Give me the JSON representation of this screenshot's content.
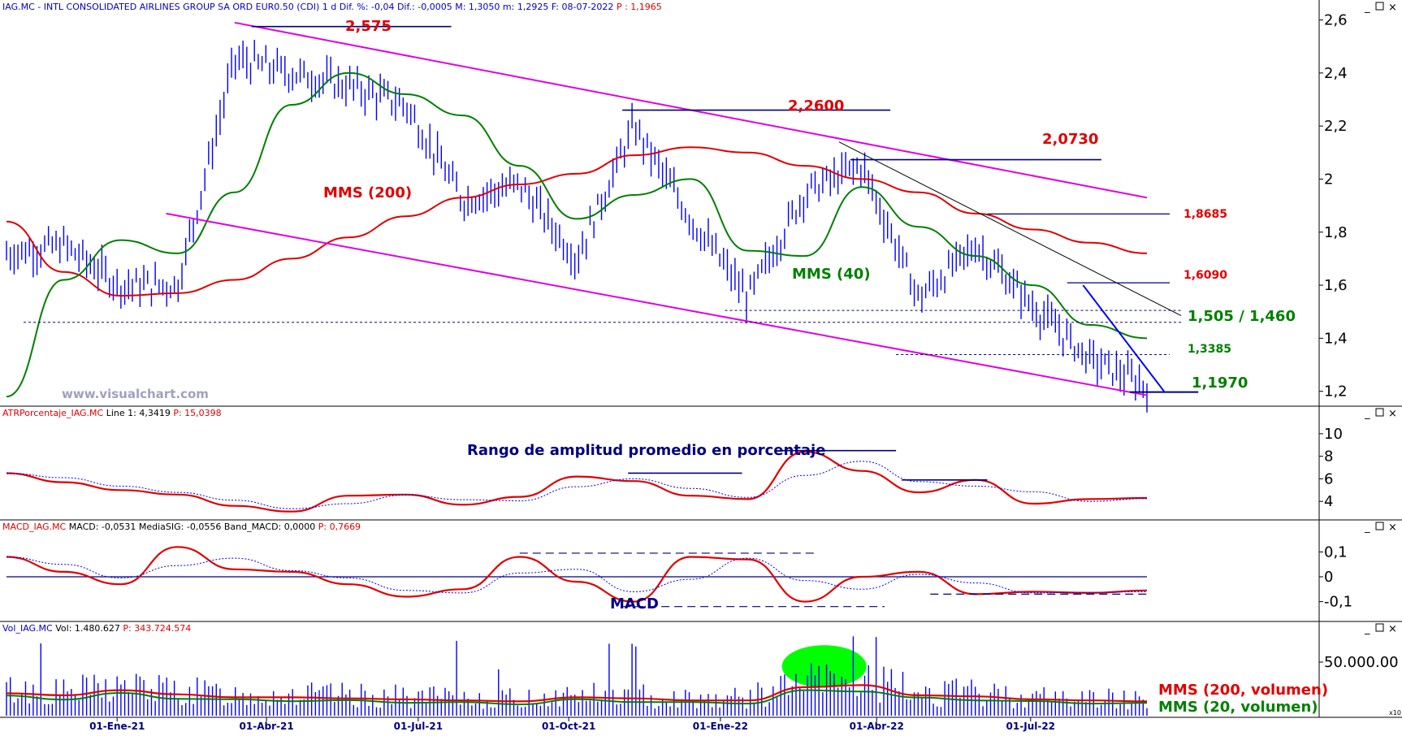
{
  "panels": {
    "price": {
      "header_symbol": "IAG.MC - INTL CONSOLIDATED AIRLINES GROUP SA ORD EUR0.50 (CDI)",
      "header_interval": "1 d",
      "header_dif": "Dif. %: -0,04",
      "header_dif2": "Dif.: -0,0005",
      "header_max": "M: 1,3050",
      "header_min": "m: 1,2925",
      "header_date": "F: 08-07-2022",
      "header_price": "P : 1,1965",
      "watermark": "www.visualchart.com"
    },
    "atr": {
      "header_name": "ATRPorcentaje_IAG.MC",
      "header_values": "Line 1: 4,3419",
      "header_p": "P: 15,0398",
      "annotation": "Rango de amplitud promedio en porcentaje"
    },
    "macd": {
      "header_name": "MACD_IAG.MC",
      "header_values": "MACD: -0,0531  MediaSIG: -0,0556  Band_MACD: 0,0000",
      "header_p": "P: 0,7669",
      "annotation": "MACD"
    },
    "volume": {
      "header_name": "Vol_IAG.MC",
      "header_values": "Vol: 1.480.627",
      "header_p": "P: 343.724.574",
      "legend_mms200": "MMS (200, volumen)",
      "legend_mms20": "MMS (20, volumen)",
      "corner_label": "x10"
    }
  },
  "price_labels": {
    "high_2575": "2,575",
    "level_2260": "2,2600",
    "level_2073": "2,0730",
    "level_18685": "1,8685",
    "level_1609": "1,6090",
    "level_range": "1,505 / 1,460",
    "level_13385": "1,3385",
    "level_1197": "1,1970",
    "mms200": "MMS (200)",
    "mms40": "MMS (40)"
  },
  "y_ticks": {
    "price": [
      "2,6",
      "2,4",
      "2,2",
      "2",
      "1,8",
      "1,6",
      "1,4",
      "1,2"
    ],
    "atr": [
      "10",
      "8",
      "6",
      "4"
    ],
    "macd": [
      "0,1",
      "0",
      "-0,1"
    ],
    "volume": [
      "50.000.00"
    ]
  },
  "x_ticks": [
    "01-Ene-21",
    "01-Abr-21",
    "01-Jul-21",
    "01-Oct-21",
    "01-Ene-22",
    "01-Abr-22",
    "01-Jul-22"
  ],
  "colors": {
    "price_bars": "#0000ff",
    "mms200": "#e00000",
    "mms40": "#008000",
    "channel": "#e000e0",
    "level_lines": "#000080",
    "atr_line": "#e00000",
    "atr_signal": "#0000ff",
    "macd_line": "#e00000",
    "macd_signal": "#0000ff",
    "volume_bars": "#0000ff",
    "volume_highlight": "#00ff00",
    "axis_text": "#000080",
    "label_red": "#e00000",
    "label_green": "#008000"
  },
  "chart_data": {
    "type": "line",
    "title": "IAG.MC - INTL CONSOLIDATED AIRLINES GROUP SA ORD EUR0.50 (CDI)",
    "x": [
      "2020-11",
      "2020-12",
      "2021-01",
      "2021-02",
      "2021-03",
      "2021-04",
      "2021-05",
      "2021-06",
      "2021-07",
      "2021-08",
      "2021-09",
      "2021-10",
      "2021-11",
      "2021-12",
      "2022-01",
      "2022-02",
      "2022-03",
      "2022-04",
      "2022-05",
      "2022-06",
      "2022-07"
    ],
    "series": [
      {
        "name": "Price",
        "values": [
          1.72,
          1.75,
          1.6,
          1.6,
          2.45,
          2.4,
          2.35,
          2.28,
          1.92,
          1.98,
          1.7,
          2.2,
          1.85,
          1.55,
          1.95,
          2.05,
          1.55,
          1.75,
          1.52,
          1.32,
          1.22
        ]
      },
      {
        "name": "MMS (200)",
        "values": [
          1.84,
          1.65,
          1.56,
          1.57,
          1.62,
          1.7,
          1.78,
          1.86,
          1.93,
          1.98,
          2.02,
          2.09,
          2.12,
          2.1,
          2.05,
          2.0,
          1.95,
          1.87,
          1.81,
          1.76,
          1.72
        ]
      },
      {
        "name": "MMS (40)",
        "values": [
          1.18,
          1.62,
          1.77,
          1.72,
          1.95,
          2.28,
          2.4,
          2.32,
          2.24,
          2.05,
          1.85,
          1.94,
          2.0,
          1.73,
          1.71,
          1.97,
          1.82,
          1.71,
          1.6,
          1.45,
          1.4
        ]
      }
    ],
    "ylim": [
      1.15,
      2.62
    ],
    "grid": false,
    "levels": [
      2.575,
      2.26,
      2.073,
      1.8685,
      1.609,
      1.505,
      1.46,
      1.3385,
      1.197
    ],
    "subcharts": [
      {
        "name": "ATRPorcentaje_IAG.MC",
        "ylim": [
          2.5,
          11
        ],
        "values": [
          6.5,
          5.7,
          5.0,
          4.6,
          3.6,
          3.1,
          4.5,
          4.6,
          3.7,
          4.4,
          6.2,
          5.8,
          4.5,
          4.2,
          8.4,
          6.7,
          4.8,
          5.9,
          3.8,
          4.2,
          4.3
        ]
      },
      {
        "name": "MACD_IAG.MC",
        "ylim": [
          -0.17,
          0.17
        ],
        "values": [
          0.08,
          0.02,
          -0.03,
          0.12,
          0.03,
          0.02,
          -0.03,
          -0.08,
          -0.05,
          0.08,
          -0.02,
          -0.1,
          0.08,
          0.07,
          -0.1,
          0.0,
          0.02,
          -0.07,
          -0.06,
          -0.065,
          -0.055
        ]
      },
      {
        "name": "Vol_IAG.MC",
        "ylim": [
          0,
          75000000
        ],
        "values": [
          22000000,
          20000000,
          25000000,
          21000000,
          18000000,
          18000000,
          17000000,
          16000000,
          15000000,
          14000000,
          18000000,
          17000000,
          15000000,
          15000000,
          28000000,
          30000000,
          20000000,
          19000000,
          16000000,
          15000000,
          14000000
        ]
      }
    ]
  }
}
